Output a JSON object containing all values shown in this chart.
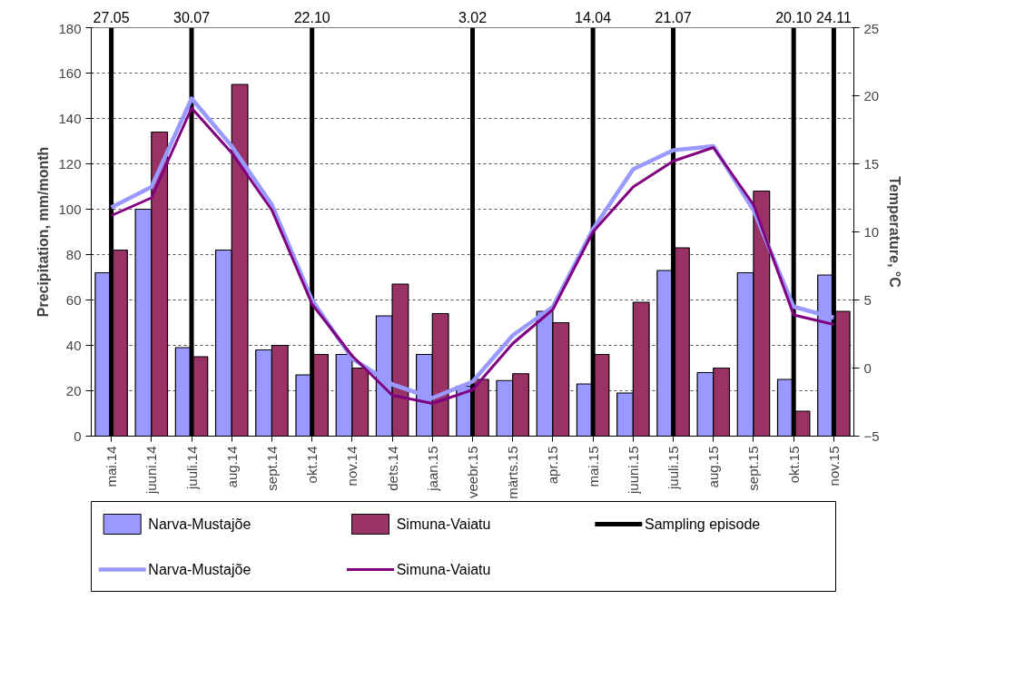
{
  "chart_data": {
    "type": "bar",
    "ylabel": "Precipitation, mm/month",
    "y2label": "Temperature, °C",
    "categories": [
      "mai.14",
      "juuni.14",
      "juuli.14",
      "aug.14",
      "sept.14",
      "okt.14",
      "nov.14",
      "dets.14",
      "jaan.15",
      "veebr.15",
      "märts.15",
      "apr.15",
      "mai.15",
      "juuni.15",
      "juuli.15",
      "aug.15",
      "sept.15",
      "okt.15",
      "nov.15"
    ],
    "series": [
      {
        "name": "Narva-Mustajõe",
        "color": "#9999ff",
        "values": [
          72,
          100,
          39,
          82,
          38,
          27,
          36,
          53,
          36,
          22,
          24.5,
          55,
          23,
          19,
          73,
          28,
          72,
          25,
          71
        ]
      },
      {
        "name": "Simuna-Vaiatu",
        "color": "#993366",
        "values": [
          82,
          134,
          35,
          155,
          40,
          36,
          30,
          67,
          54,
          25,
          27.5,
          50,
          36,
          59,
          83,
          30,
          108,
          11,
          55
        ]
      },
      {
        "name": "Narva-Mustajõe",
        "type": "line",
        "axis": "y2",
        "color": "#9999ff",
        "values": [
          11.8,
          13.3,
          19.8,
          16.3,
          12.0,
          5.0,
          0.7,
          -1.2,
          -2.2,
          -1.0,
          2.4,
          4.5,
          10.2,
          14.6,
          16.0,
          16.3,
          11.6,
          4.5,
          3.7
        ]
      },
      {
        "name": "Simuna-Vaiatu",
        "type": "line",
        "axis": "y2",
        "color": "#800080",
        "values": [
          11.2,
          12.5,
          19.1,
          15.8,
          11.6,
          4.7,
          0.9,
          -2.0,
          -2.6,
          -1.6,
          1.8,
          4.3,
          10.0,
          13.3,
          15.2,
          16.2,
          12.0,
          3.9,
          3.2
        ]
      }
    ],
    "ylim": [
      0,
      180
    ],
    "yticks": [
      0,
      20,
      40,
      60,
      80,
      100,
      120,
      140,
      160,
      180
    ],
    "y2lim": [
      -5,
      25
    ],
    "y2ticks": [
      -5,
      0,
      5,
      10,
      15,
      20,
      25
    ],
    "ref_lines": [
      {
        "axis": "x",
        "value": "mai.14",
        "label": "27.05",
        "color": "#000000"
      },
      {
        "axis": "x",
        "value": "juuli.14",
        "label": "30.07",
        "color": "#000000"
      },
      {
        "axis": "x",
        "value": "okt.14",
        "label": "22.10",
        "color": "#000000"
      },
      {
        "axis": "x",
        "value": "veebr.15",
        "label": "3.02",
        "color": "#000000"
      },
      {
        "axis": "x",
        "value": "mai.15",
        "label": "14.04",
        "color": "#000000"
      },
      {
        "axis": "x",
        "value": "juuli.15",
        "label": "21.07",
        "color": "#000000"
      },
      {
        "axis": "x",
        "value": "okt.15",
        "label": "20.10",
        "color": "#000000"
      },
      {
        "axis": "x",
        "value": "nov.15",
        "label": "24.11",
        "color": "#000000"
      }
    ],
    "annotations": [
      "Sampling episode"
    ],
    "grid": "y",
    "legend": "bottom"
  }
}
